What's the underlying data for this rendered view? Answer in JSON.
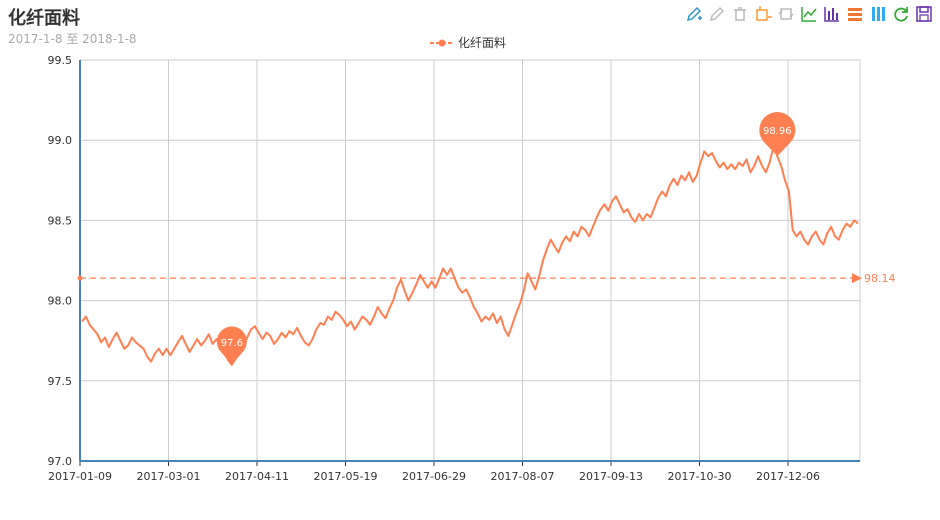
{
  "title": "化纤面料",
  "subtitle": "2017-1-8 至 2018-1-8",
  "toolbox": [
    {
      "name": "mark-icon",
      "color": "#3399cc"
    },
    {
      "name": "mark-undo-icon",
      "color": "#bbbbbb"
    },
    {
      "name": "mark-clear-icon",
      "color": "#bbbbbb"
    },
    {
      "name": "data-zoom-icon",
      "color": "#ff9933"
    },
    {
      "name": "data-zoom-reset-icon",
      "color": "#bbbbbb"
    },
    {
      "name": "line-chart-icon",
      "color": "#33aa33"
    },
    {
      "name": "bar-chart-icon",
      "color": "#6633aa"
    },
    {
      "name": "stack-icon",
      "color": "#ee7733"
    },
    {
      "name": "tiled-icon",
      "color": "#33aaee"
    },
    {
      "name": "restore-icon",
      "color": "#33aa33"
    },
    {
      "name": "save-image-icon",
      "color": "#6633aa"
    }
  ],
  "chart_data": {
    "type": "line",
    "title": "化纤面料",
    "subtitle": "2017-1-8 至 2018-1-8",
    "legend": [
      "化纤面料"
    ],
    "legend_position": "top-center",
    "ylim": [
      97.0,
      99.5
    ],
    "y_ticks": [
      "97.0",
      "97.5",
      "98.0",
      "98.5",
      "99.0",
      "99.5"
    ],
    "x_tick_labels": [
      "2017-01-09",
      "2017-03-01",
      "2017-04-11",
      "2017-05-19",
      "2017-06-29",
      "2017-08-07",
      "2017-09-13",
      "2017-10-30",
      "2017-12-06"
    ],
    "grid": true,
    "series": [
      {
        "name": "化纤面料",
        "color": "#ff7f50",
        "values": [
          97.87,
          97.9,
          97.85,
          97.82,
          97.79,
          97.74,
          97.77,
          97.71,
          97.76,
          97.8,
          97.75,
          97.7,
          97.72,
          97.77,
          97.74,
          97.72,
          97.7,
          97.65,
          97.62,
          97.67,
          97.7,
          97.66,
          97.7,
          97.66,
          97.7,
          97.74,
          97.78,
          97.73,
          97.68,
          97.72,
          97.76,
          97.72,
          97.75,
          97.79,
          97.73,
          97.76,
          97.72,
          97.68,
          97.63,
          97.6,
          97.64,
          97.68,
          97.72,
          97.77,
          97.82,
          97.84,
          97.8,
          97.76,
          97.8,
          97.78,
          97.73,
          97.76,
          97.8,
          97.77,
          97.81,
          97.79,
          97.83,
          97.78,
          97.74,
          97.72,
          97.76,
          97.82,
          97.86,
          97.85,
          97.9,
          97.88,
          97.93,
          97.91,
          97.88,
          97.84,
          97.87,
          97.82,
          97.86,
          97.9,
          97.88,
          97.85,
          97.9,
          97.96,
          97.92,
          97.89,
          97.95,
          98.0,
          98.08,
          98.13,
          98.06,
          98.0,
          98.05,
          98.1,
          98.16,
          98.12,
          98.08,
          98.12,
          98.08,
          98.14,
          98.2,
          98.16,
          98.2,
          98.14,
          98.08,
          98.05,
          98.07,
          98.02,
          97.96,
          97.92,
          97.87,
          97.9,
          97.88,
          97.92,
          97.86,
          97.9,
          97.82,
          97.78,
          97.85,
          97.92,
          97.98,
          98.06,
          98.17,
          98.12,
          98.07,
          98.15,
          98.25,
          98.32,
          98.38,
          98.34,
          98.3,
          98.36,
          98.4,
          98.37,
          98.43,
          98.4,
          98.46,
          98.44,
          98.4,
          98.46,
          98.52,
          98.57,
          98.6,
          98.56,
          98.62,
          98.65,
          98.6,
          98.55,
          98.57,
          98.52,
          98.49,
          98.54,
          98.5,
          98.54,
          98.52,
          98.58,
          98.64,
          98.68,
          98.65,
          98.72,
          98.76,
          98.72,
          98.78,
          98.75,
          98.8,
          98.74,
          98.78,
          98.86,
          98.93,
          98.9,
          98.92,
          98.87,
          98.83,
          98.86,
          98.82,
          98.85,
          98.82,
          98.86,
          98.84,
          98.88,
          98.8,
          98.84,
          98.9,
          98.84,
          98.8,
          98.86,
          98.96,
          98.9,
          98.84,
          98.75,
          98.68,
          98.44,
          98.4,
          98.43,
          98.38,
          98.35,
          98.4,
          98.43,
          98.38,
          98.35,
          98.42,
          98.46,
          98.4,
          98.38,
          98.44,
          98.48,
          98.46,
          98.5,
          98.48
        ]
      }
    ],
    "mark_points": [
      {
        "label": "98.96",
        "type": "max",
        "index": 181
      },
      {
        "label": "97.6",
        "type": "min",
        "index": 39
      }
    ],
    "mark_line": {
      "label": "98.14",
      "type": "average",
      "value": 98.14
    }
  }
}
